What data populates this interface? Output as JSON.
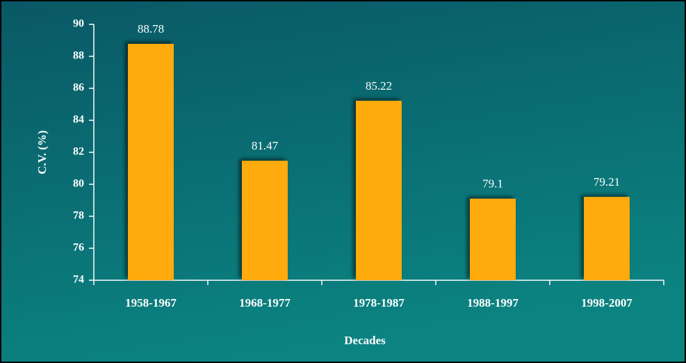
{
  "chart_data": {
    "type": "bar",
    "x_label": "Decades",
    "y_label": "C.V. (%)",
    "categories": [
      "1958-1967",
      "1968-1977",
      "1978-1987",
      "1988-1997",
      "1998-2007"
    ],
    "values": [
      88.78,
      81.47,
      85.22,
      79.1,
      79.21
    ],
    "color": "#ffaa11",
    "ylim": [
      74,
      90
    ],
    "yticks": [
      74,
      76,
      78,
      80,
      82,
      84,
      86,
      88,
      90
    ],
    "grid": false
  }
}
